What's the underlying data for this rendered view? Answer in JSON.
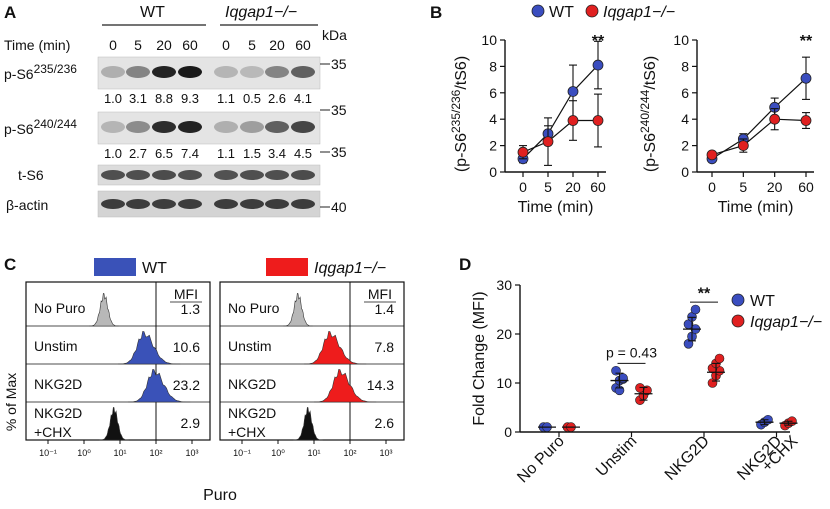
{
  "figure": {
    "panel_a": {
      "letter": "A",
      "group_wt": "WT",
      "group_ko": "Iqgap1−/−",
      "kda_label": "kDa",
      "time_label": "Time (min)",
      "times": [
        "0",
        "5",
        "20",
        "60",
        "0",
        "5",
        "20",
        "60"
      ],
      "blots": [
        {
          "label": "p-S6",
          "sup": "235/236",
          "kda": "35"
        },
        {
          "label": "p-S6",
          "sup": "240/244",
          "kda": "35"
        },
        {
          "label": "t-S6",
          "sup": "",
          "kda": "35"
        },
        {
          "label": "β-actin",
          "sup": "",
          "kda": "40"
        }
      ],
      "quant_p235": [
        "1.0",
        "3.1",
        "8.8",
        "9.3",
        "1.1",
        "0.5",
        "2.6",
        "4.1"
      ],
      "quant_p240": [
        "1.0",
        "2.7",
        "6.5",
        "7.4",
        "1.1",
        "1.5",
        "3.4",
        "4.5"
      ],
      "band_intensity_p235": [
        0.15,
        0.4,
        0.95,
        1.0,
        0.12,
        0.1,
        0.4,
        0.6
      ],
      "band_intensity_p240": [
        0.12,
        0.35,
        0.9,
        0.95,
        0.15,
        0.25,
        0.6,
        0.75
      ]
    },
    "panel_b": {
      "letter": "B",
      "legend_wt": "WT",
      "legend_ko": "Iqgap1−/−",
      "colors": {
        "wt": "#3a4dbf",
        "ko": "#e02020"
      }
    },
    "panel_c": {
      "letter": "C",
      "legend_wt": "WT",
      "legend_ko": "Iqgap1−/−",
      "y_label": "% of Max",
      "x_label": "Puro",
      "mfi_header": "MFI",
      "rows": [
        "No Puro",
        "Unstim",
        "NKG2D",
        "NKG2D",
        "+CHX"
      ],
      "mfi_wt": [
        "1.3",
        "10.6",
        "23.2",
        "2.9"
      ],
      "mfi_ko": [
        "1.4",
        "7.8",
        "14.3",
        "2.6"
      ],
      "x_ticks": [
        "10⁻¹",
        "10⁰",
        "10¹",
        "10²",
        "10³"
      ],
      "colors": {
        "wt": "#3a52b8",
        "ko": "#ee1c1c",
        "grey": "#b8b8b8",
        "black": "#111111"
      }
    },
    "panel_d": {
      "letter": "D",
      "legend_wt": "WT",
      "legend_ko": "Iqgap1−/−",
      "annotation": "p = 0.43",
      "sig": "**"
    }
  },
  "chart_data": [
    {
      "type": "line",
      "title": "",
      "xlabel": "Time (min)",
      "ylabel": "(p-S6235/236/tS6)",
      "x": [
        0,
        5,
        20,
        60
      ],
      "x_ticks": [
        "0",
        "5",
        "20",
        "60"
      ],
      "ylim": [
        0,
        10
      ],
      "y_ticks": [
        "0",
        "2",
        "4",
        "6",
        "8",
        "10"
      ],
      "series": [
        {
          "name": "WT",
          "values": [
            1.0,
            2.9,
            6.1,
            8.1
          ],
          "err": [
            0.3,
            0.6,
            2.0,
            1.8
          ]
        },
        {
          "name": "Iqgap1-/-",
          "values": [
            1.5,
            2.3,
            3.9,
            3.9
          ],
          "err": [
            0.5,
            1.8,
            1.5,
            2.0
          ]
        }
      ],
      "annotation": "**"
    },
    {
      "type": "line",
      "title": "",
      "xlabel": "Time (min)",
      "ylabel": "(p-S6240/244/tS6)",
      "x": [
        0,
        5,
        20,
        60
      ],
      "x_ticks": [
        "0",
        "5",
        "20",
        "60"
      ],
      "ylim": [
        0,
        10
      ],
      "y_ticks": [
        "0",
        "2",
        "4",
        "6",
        "8",
        "10"
      ],
      "series": [
        {
          "name": "WT",
          "values": [
            1.0,
            2.5,
            4.9,
            7.1
          ],
          "err": [
            0.2,
            0.4,
            0.7,
            1.6
          ]
        },
        {
          "name": "Iqgap1-/-",
          "values": [
            1.3,
            2.0,
            4.0,
            3.9
          ],
          "err": [
            0.2,
            0.5,
            0.8,
            0.6
          ]
        }
      ],
      "annotation": "**"
    },
    {
      "type": "scatter",
      "title": "",
      "xlabel": "",
      "ylabel": "Fold Change (MFI)",
      "categories": [
        "No Puro",
        "Unstim",
        "NKG2D",
        "NKG2D +CHX"
      ],
      "ylim": [
        0,
        30
      ],
      "y_ticks": [
        "0",
        "10",
        "20",
        "30"
      ],
      "series": [
        {
          "name": "WT",
          "points": [
            [
              1,
              1
            ],
            [
              9,
              10.5,
              10.8,
              12.5,
              8.5,
              11
            ],
            [
              18,
              19.5,
              21,
              22,
              23.5,
              25
            ],
            [
              1.5,
              2,
              2.5
            ]
          ],
          "means": [
            1,
            10.5,
            21,
            2
          ],
          "sd": [
            0,
            1.5,
            2.4,
            0.5
          ]
        },
        {
          "name": "Iqgap1-/-",
          "points": [
            [
              1,
              1
            ],
            [
              6.5,
              7.5,
              8.5,
              9
            ],
            [
              10,
              11.5,
              12.5,
              13,
              14,
              15
            ],
            [
              1.3,
              1.8,
              2.2
            ]
          ],
          "means": [
            1,
            7.8,
            12.2,
            1.8
          ],
          "sd": [
            0,
            1.3,
            1.8,
            0.4
          ]
        }
      ],
      "annotations": [
        "p = 0.43",
        "**"
      ]
    }
  ]
}
